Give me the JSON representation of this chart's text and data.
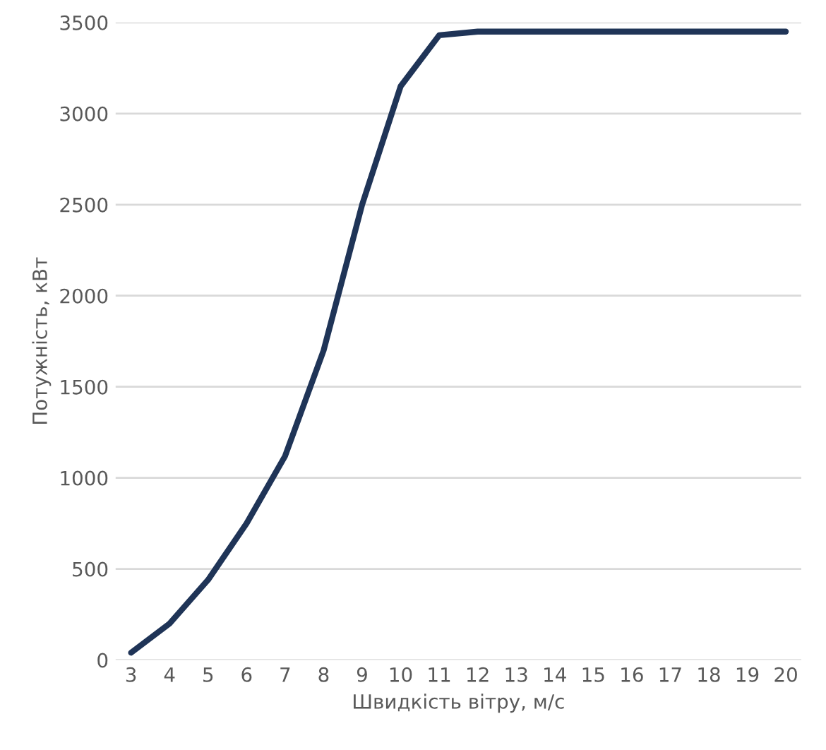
{
  "chart_data": {
    "type": "line",
    "xlabel": "Швидкість вітру, м/с",
    "ylabel": "Потужність, кВт",
    "categories": [
      "3",
      "4",
      "5",
      "6",
      "7",
      "8",
      "9",
      "10",
      "11",
      "12",
      "13",
      "14",
      "15",
      "16",
      "17",
      "18",
      "19",
      "20"
    ],
    "series": [
      {
        "color": "#1f3457",
        "values": [
          40,
          200,
          440,
          750,
          1120,
          1700,
          2500,
          3150,
          3430,
          3450,
          3450,
          3450,
          3450,
          3450,
          3450,
          3450,
          3450,
          3450
        ]
      }
    ],
    "ylim": [
      0,
      3500
    ],
    "yticks": [
      0,
      500,
      1000,
      1500,
      2000,
      2500,
      3000,
      3500
    ],
    "grid": "y",
    "marker": "none",
    "line_style": "solid",
    "legend": false
  }
}
